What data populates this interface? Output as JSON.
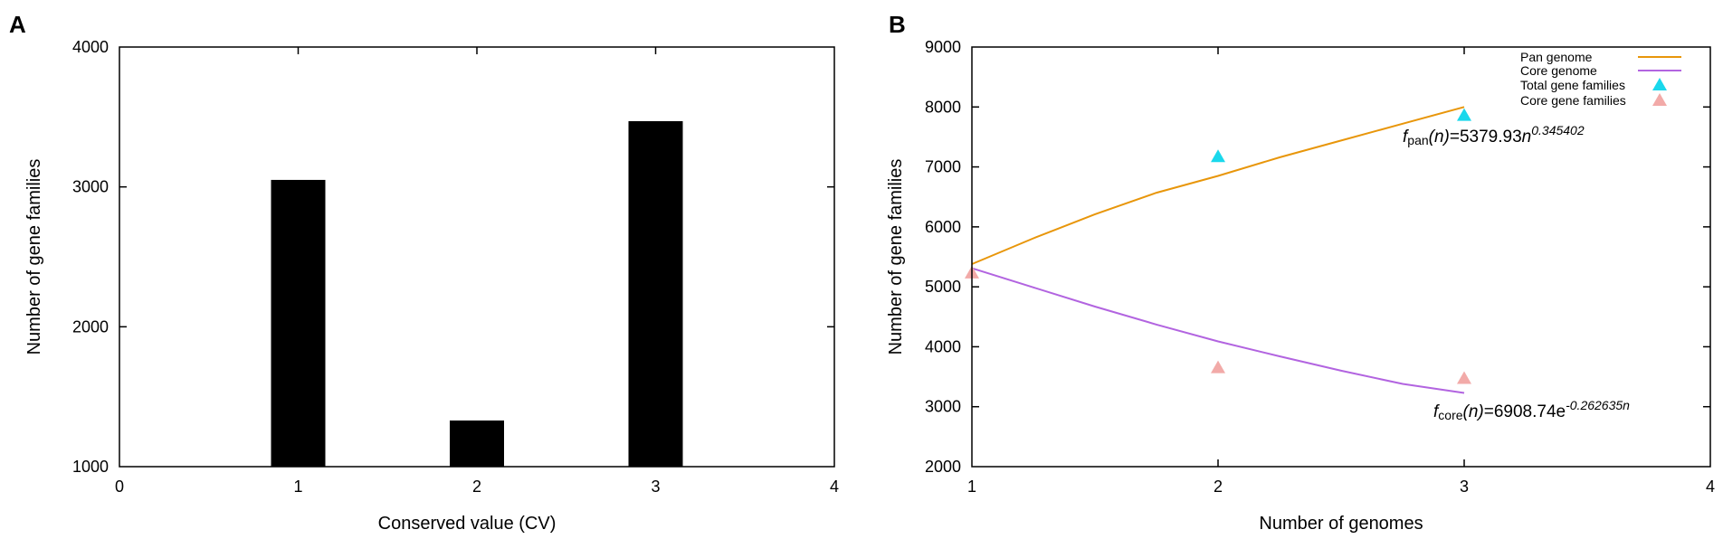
{
  "panels": {
    "a": {
      "label": "A"
    },
    "b": {
      "label": "B"
    }
  },
  "chart_data": [
    {
      "type": "bar",
      "panel": "A",
      "x": [
        1,
        2,
        3
      ],
      "values": [
        3050,
        1330,
        3470
      ],
      "xlabel": "Conserved value (CV)",
      "ylabel": "Number of gene families",
      "xlim": [
        0,
        4
      ],
      "ylim": [
        1000,
        4000
      ],
      "xticks": [
        0,
        1,
        2,
        3,
        4
      ],
      "yticks": [
        1000,
        2000,
        3000,
        4000
      ],
      "bar_color": "#000000",
      "grid": false
    },
    {
      "type": "line",
      "panel": "B",
      "xlabel": "Number of genomes",
      "ylabel": "Number of gene families",
      "xlim": [
        1,
        4
      ],
      "ylim": [
        2000,
        9000
      ],
      "xticks": [
        1,
        2,
        3,
        4
      ],
      "yticks": [
        2000,
        3000,
        4000,
        5000,
        6000,
        7000,
        8000,
        9000
      ],
      "grid": false,
      "legend_position": "top-right",
      "series": [
        {
          "name": "Pan genome",
          "kind": "line",
          "color": "#e8960a",
          "x": [
            1,
            1.25,
            1.5,
            1.75,
            2,
            2.25,
            2.5,
            2.75,
            3
          ],
          "y": [
            5380,
            5810,
            6210,
            6570,
            6850,
            7160,
            7440,
            7720,
            8000
          ]
        },
        {
          "name": "Core genome",
          "kind": "line",
          "color": "#b264e0",
          "x": [
            1,
            1.25,
            1.5,
            1.75,
            2,
            2.25,
            2.5,
            2.75,
            3
          ],
          "y": [
            5310,
            4990,
            4670,
            4370,
            4090,
            3840,
            3600,
            3380,
            3230
          ]
        },
        {
          "name": "Total gene families",
          "kind": "marker",
          "marker": "triangle",
          "color": "#1ad8ec",
          "x": [
            2,
            3
          ],
          "y": [
            7170,
            7860
          ]
        },
        {
          "name": "Core gene families",
          "kind": "marker",
          "marker": "triangle",
          "color": "#f2aaa8",
          "x": [
            1,
            2,
            3
          ],
          "y": [
            5230,
            3650,
            3470
          ]
        }
      ],
      "annotations": {
        "pan": {
          "f": "f",
          "sub": "pan",
          "arg": "(n)",
          "eq": "=5379.93",
          "base": "n",
          "exp": "0.345402"
        },
        "core": {
          "f": "f",
          "sub": "core",
          "arg": "(n)",
          "eq": "=6908.74",
          "base": "e",
          "exp": "-0.262635n"
        }
      }
    }
  ]
}
